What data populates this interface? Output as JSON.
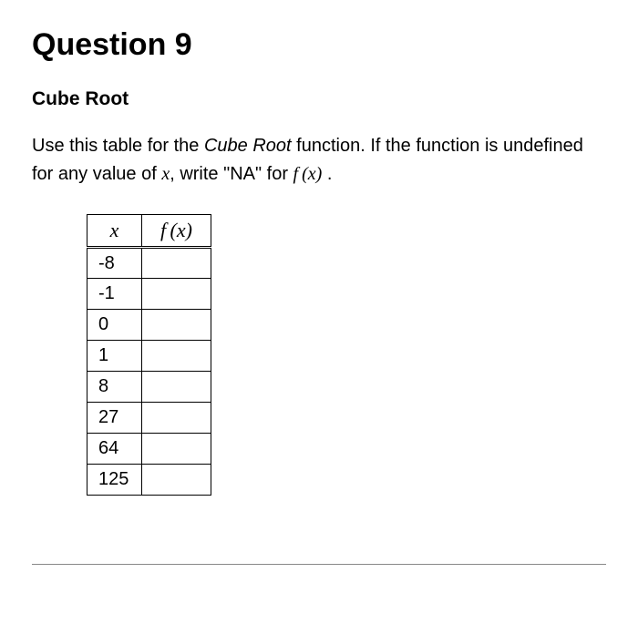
{
  "title": "Question 9",
  "subtitle": "Cube Root",
  "instructions": {
    "part1": "Use this table for the ",
    "italic_name": "Cube Root",
    "part2": " function. If the function is undefined for any value of ",
    "var1": "x",
    "part3": ", write \"NA\" for ",
    "func": "f (x)",
    "part4": " ."
  },
  "table": {
    "header_x": "x",
    "header_fx": "f (x)",
    "rows": [
      {
        "x": "-8",
        "fx": ""
      },
      {
        "x": "-1",
        "fx": ""
      },
      {
        "x": "0",
        "fx": ""
      },
      {
        "x": "1",
        "fx": ""
      },
      {
        "x": "8",
        "fx": ""
      },
      {
        "x": "27",
        "fx": ""
      },
      {
        "x": "64",
        "fx": ""
      },
      {
        "x": "125",
        "fx": ""
      }
    ]
  },
  "styling": {
    "background_color": "#ffffff",
    "text_color": "#000000",
    "border_color": "#000000",
    "title_fontsize": 34,
    "subtitle_fontsize": 21,
    "body_fontsize": 20,
    "table_fontsize": 20,
    "table_col_x_width": 60,
    "table_col_fx_width": 76,
    "table_margin_left": 60
  }
}
